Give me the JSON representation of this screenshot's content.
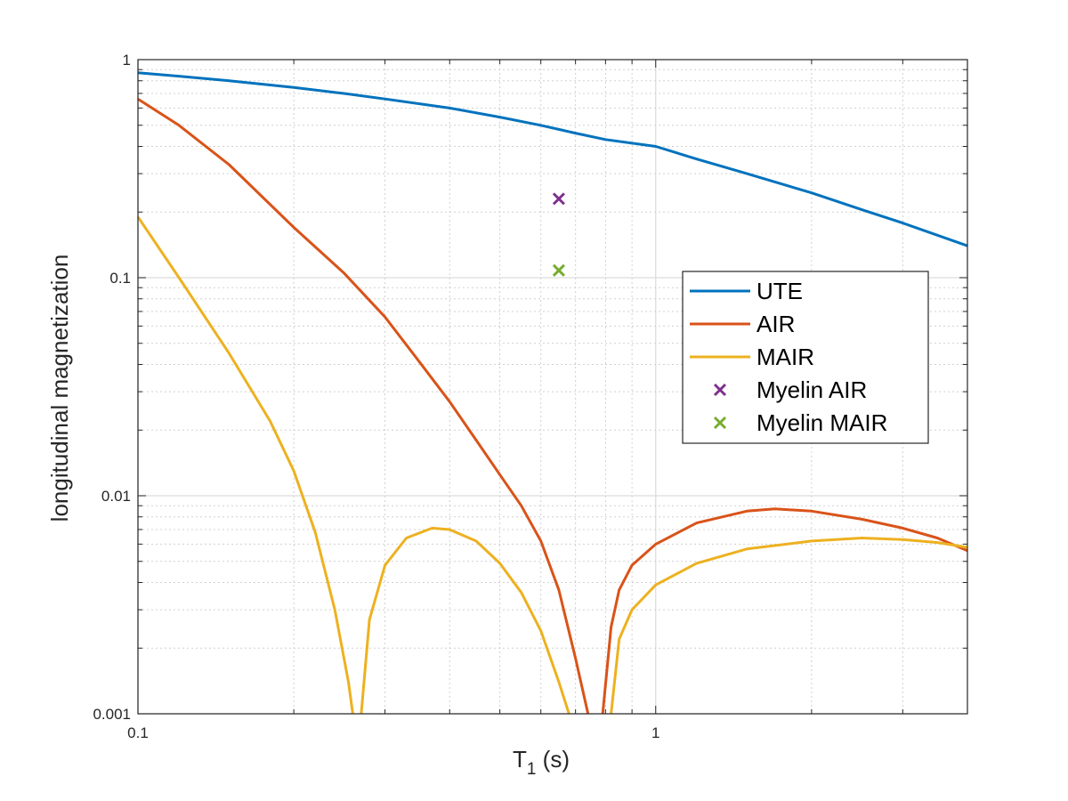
{
  "chart_data": {
    "type": "line",
    "xscale": "log",
    "yscale": "log",
    "xlim": [
      0.1,
      4.0
    ],
    "ylim": [
      0.001,
      1
    ],
    "xlabel": "T",
    "xlabel_sub": "1",
    "xlabel_unit": " (s)",
    "ylabel": "longitudinal magnetization",
    "grid": true,
    "minor_grid": true,
    "legend_position": "right",
    "x_ticks": [
      {
        "value": 0.1,
        "label": "0.1"
      },
      {
        "value": 1,
        "label": "1"
      }
    ],
    "y_ticks": [
      {
        "value": 0.001,
        "label": "0.001"
      },
      {
        "value": 0.01,
        "label": "0.01"
      },
      {
        "value": 0.1,
        "label": "0.1"
      },
      {
        "value": 1,
        "label": "1"
      }
    ],
    "series": [
      {
        "name": "UTE",
        "color": "#0072BD",
        "type": "line",
        "points": [
          [
            0.1,
            0.87
          ],
          [
            0.12,
            0.84
          ],
          [
            0.15,
            0.8
          ],
          [
            0.2,
            0.745
          ],
          [
            0.25,
            0.7
          ],
          [
            0.3,
            0.66
          ],
          [
            0.4,
            0.6
          ],
          [
            0.5,
            0.545
          ],
          [
            0.6,
            0.5
          ],
          [
            0.7,
            0.46
          ],
          [
            0.8,
            0.43
          ],
          [
            1.0,
            0.4
          ],
          [
            1.2,
            0.35
          ],
          [
            1.5,
            0.3
          ],
          [
            2.0,
            0.245
          ],
          [
            2.5,
            0.205
          ],
          [
            3.0,
            0.178
          ],
          [
            4.0,
            0.14
          ]
        ]
      },
      {
        "name": "AIR",
        "color": "#D95319",
        "type": "line",
        "segments": [
          [
            [
              0.1,
              0.66
            ],
            [
              0.12,
              0.5
            ],
            [
              0.15,
              0.33
            ],
            [
              0.2,
              0.17
            ],
            [
              0.25,
              0.105
            ],
            [
              0.3,
              0.066
            ],
            [
              0.35,
              0.041
            ],
            [
              0.4,
              0.027
            ],
            [
              0.45,
              0.018
            ],
            [
              0.5,
              0.0125
            ],
            [
              0.55,
              0.009
            ],
            [
              0.6,
              0.0062
            ],
            [
              0.65,
              0.0037
            ],
            [
              0.7,
              0.0018
            ],
            [
              0.74,
              0.001
            ]
          ],
          [
            [
              0.79,
              0.001
            ],
            [
              0.82,
              0.0025
            ],
            [
              0.85,
              0.0037
            ],
            [
              0.9,
              0.0048
            ],
            [
              1.0,
              0.006
            ],
            [
              1.2,
              0.0075
            ],
            [
              1.5,
              0.0085
            ],
            [
              1.7,
              0.0087
            ],
            [
              2.0,
              0.0085
            ],
            [
              2.5,
              0.0078
            ],
            [
              3.0,
              0.0071
            ],
            [
              3.5,
              0.0064
            ],
            [
              4.0,
              0.0056
            ]
          ]
        ]
      },
      {
        "name": "MAIR",
        "color": "#EDB120",
        "type": "line",
        "segments": [
          [
            [
              0.1,
              0.19
            ],
            [
              0.12,
              0.1
            ],
            [
              0.15,
              0.045
            ],
            [
              0.18,
              0.022
            ],
            [
              0.2,
              0.013
            ],
            [
              0.22,
              0.0068
            ],
            [
              0.24,
              0.003
            ],
            [
              0.255,
              0.0014
            ],
            [
              0.26,
              0.001
            ]
          ],
          [
            [
              0.27,
              0.001
            ],
            [
              0.28,
              0.0027
            ],
            [
              0.3,
              0.0048
            ],
            [
              0.33,
              0.0064
            ],
            [
              0.37,
              0.0071
            ],
            [
              0.4,
              0.007
            ],
            [
              0.45,
              0.0062
            ],
            [
              0.5,
              0.0049
            ],
            [
              0.55,
              0.0036
            ],
            [
              0.6,
              0.0024
            ],
            [
              0.65,
              0.0014
            ],
            [
              0.68,
              0.001
            ]
          ],
          [
            [
              0.82,
              0.001
            ],
            [
              0.85,
              0.0022
            ],
            [
              0.9,
              0.003
            ],
            [
              1.0,
              0.0039
            ],
            [
              1.2,
              0.0049
            ],
            [
              1.5,
              0.0057
            ],
            [
              2.0,
              0.0062
            ],
            [
              2.5,
              0.0064
            ],
            [
              3.0,
              0.0063
            ],
            [
              3.5,
              0.0061
            ],
            [
              4.0,
              0.0058
            ]
          ]
        ]
      },
      {
        "name": "Myelin AIR",
        "color": "#7E2F8E",
        "type": "scatter",
        "marker": "x",
        "points": [
          [
            0.65,
            0.23
          ]
        ]
      },
      {
        "name": "Myelin MAIR",
        "color": "#77AC30",
        "type": "scatter",
        "marker": "x",
        "points": [
          [
            0.65,
            0.108
          ]
        ]
      }
    ]
  }
}
